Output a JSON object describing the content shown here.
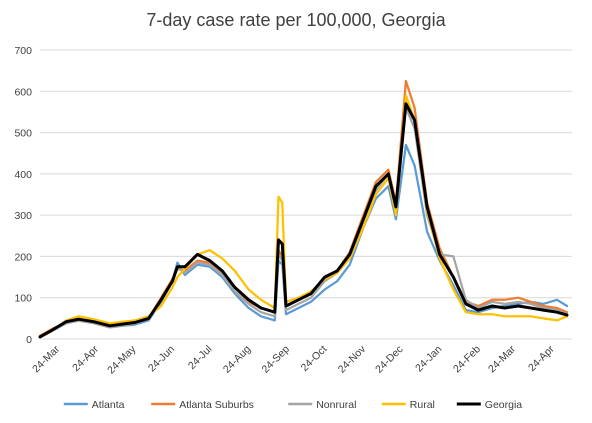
{
  "chart_data": {
    "type": "line",
    "title": "7-day case rate per 100,000, Georgia",
    "xlabel": "",
    "ylabel": "",
    "ylim": [
      0,
      700
    ],
    "yticks": [
      0,
      100,
      200,
      300,
      400,
      500,
      600,
      700
    ],
    "xlim": [
      "2020-03-10",
      "2021-05-10"
    ],
    "x_tick_labels": [
      {
        "date": "2020-03-24",
        "label": "24-Mar"
      },
      {
        "date": "2020-04-24",
        "label": "24-Apr"
      },
      {
        "date": "2020-05-24",
        "label": "24-May"
      },
      {
        "date": "2020-06-24",
        "label": "24-Jun"
      },
      {
        "date": "2020-07-24",
        "label": "24-Jul"
      },
      {
        "date": "2020-08-24",
        "label": "24-Aug"
      },
      {
        "date": "2020-09-24",
        "label": "24-Sep"
      },
      {
        "date": "2020-10-24",
        "label": "24-Oct"
      },
      {
        "date": "2020-11-24",
        "label": "24-Nov"
      },
      {
        "date": "2020-12-24",
        "label": "24-Dec"
      },
      {
        "date": "2021-01-24",
        "label": "24-Jan"
      },
      {
        "date": "2021-02-24",
        "label": "24-Feb"
      },
      {
        "date": "2021-03-24",
        "label": "24-Mar"
      },
      {
        "date": "2021-04-24",
        "label": "24-Apr"
      }
    ],
    "grid": true,
    "legend_position": "bottom",
    "series": [
      {
        "name": "Atlanta",
        "color": "#5b9bd5",
        "points": [
          [
            "2020-03-10",
            5
          ],
          [
            "2020-03-20",
            20
          ],
          [
            "2020-03-31",
            38
          ],
          [
            "2020-04-10",
            45
          ],
          [
            "2020-04-22",
            40
          ],
          [
            "2020-05-05",
            28
          ],
          [
            "2020-05-15",
            32
          ],
          [
            "2020-05-25",
            35
          ],
          [
            "2020-06-05",
            45
          ],
          [
            "2020-06-15",
            90
          ],
          [
            "2020-06-24",
            140
          ],
          [
            "2020-06-28",
            185
          ],
          [
            "2020-07-04",
            155
          ],
          [
            "2020-07-14",
            180
          ],
          [
            "2020-07-24",
            175
          ],
          [
            "2020-08-03",
            150
          ],
          [
            "2020-08-13",
            110
          ],
          [
            "2020-08-24",
            75
          ],
          [
            "2020-09-03",
            55
          ],
          [
            "2020-09-14",
            45
          ],
          [
            "2020-09-17",
            190
          ],
          [
            "2020-09-20",
            180
          ],
          [
            "2020-09-23",
            60
          ],
          [
            "2020-10-03",
            75
          ],
          [
            "2020-10-13",
            90
          ],
          [
            "2020-10-24",
            120
          ],
          [
            "2020-11-03",
            140
          ],
          [
            "2020-11-13",
            180
          ],
          [
            "2020-11-24",
            270
          ],
          [
            "2020-12-04",
            340
          ],
          [
            "2020-12-14",
            370
          ],
          [
            "2020-12-20",
            290
          ],
          [
            "2020-12-28",
            470
          ],
          [
            "2021-01-04",
            420
          ],
          [
            "2021-01-14",
            260
          ],
          [
            "2021-01-24",
            190
          ],
          [
            "2021-02-04",
            130
          ],
          [
            "2021-02-14",
            70
          ],
          [
            "2021-02-24",
            65
          ],
          [
            "2021-03-07",
            75
          ],
          [
            "2021-03-17",
            80
          ],
          [
            "2021-03-28",
            85
          ],
          [
            "2021-04-07",
            90
          ],
          [
            "2021-04-17",
            85
          ],
          [
            "2021-04-28",
            95
          ],
          [
            "2021-05-06",
            80
          ]
        ]
      },
      {
        "name": "Atlanta Suburbs",
        "color": "#ed7d31",
        "points": [
          [
            "2020-03-10",
            8
          ],
          [
            "2020-03-20",
            25
          ],
          [
            "2020-03-31",
            40
          ],
          [
            "2020-04-10",
            48
          ],
          [
            "2020-04-22",
            42
          ],
          [
            "2020-05-05",
            32
          ],
          [
            "2020-05-15",
            35
          ],
          [
            "2020-05-25",
            40
          ],
          [
            "2020-06-05",
            50
          ],
          [
            "2020-06-15",
            100
          ],
          [
            "2020-06-24",
            145
          ],
          [
            "2020-06-28",
            170
          ],
          [
            "2020-07-04",
            165
          ],
          [
            "2020-07-14",
            190
          ],
          [
            "2020-07-24",
            185
          ],
          [
            "2020-08-03",
            160
          ],
          [
            "2020-08-13",
            125
          ],
          [
            "2020-08-24",
            90
          ],
          [
            "2020-09-03",
            75
          ],
          [
            "2020-09-14",
            65
          ],
          [
            "2020-09-17",
            215
          ],
          [
            "2020-09-20",
            200
          ],
          [
            "2020-09-23",
            80
          ],
          [
            "2020-10-03",
            95
          ],
          [
            "2020-10-13",
            110
          ],
          [
            "2020-10-24",
            150
          ],
          [
            "2020-11-03",
            165
          ],
          [
            "2020-11-13",
            210
          ],
          [
            "2020-11-24",
            300
          ],
          [
            "2020-12-04",
            380
          ],
          [
            "2020-12-14",
            410
          ],
          [
            "2020-12-20",
            330
          ],
          [
            "2020-12-28",
            625
          ],
          [
            "2021-01-04",
            560
          ],
          [
            "2021-01-14",
            330
          ],
          [
            "2021-01-24",
            220
          ],
          [
            "2021-02-04",
            150
          ],
          [
            "2021-02-14",
            90
          ],
          [
            "2021-02-24",
            80
          ],
          [
            "2021-03-07",
            95
          ],
          [
            "2021-03-17",
            95
          ],
          [
            "2021-03-28",
            100
          ],
          [
            "2021-04-07",
            90
          ],
          [
            "2021-04-17",
            80
          ],
          [
            "2021-04-28",
            75
          ],
          [
            "2021-05-06",
            65
          ]
        ]
      },
      {
        "name": "Nonrural",
        "color": "#a5a5a5",
        "points": [
          [
            "2020-03-10",
            6
          ],
          [
            "2020-03-20",
            22
          ],
          [
            "2020-03-31",
            38
          ],
          [
            "2020-04-10",
            44
          ],
          [
            "2020-04-22",
            38
          ],
          [
            "2020-05-05",
            28
          ],
          [
            "2020-05-15",
            32
          ],
          [
            "2020-05-25",
            38
          ],
          [
            "2020-06-05",
            48
          ],
          [
            "2020-06-15",
            95
          ],
          [
            "2020-06-24",
            140
          ],
          [
            "2020-06-28",
            175
          ],
          [
            "2020-07-04",
            160
          ],
          [
            "2020-07-14",
            185
          ],
          [
            "2020-07-24",
            180
          ],
          [
            "2020-08-03",
            155
          ],
          [
            "2020-08-13",
            115
          ],
          [
            "2020-08-24",
            85
          ],
          [
            "2020-09-03",
            65
          ],
          [
            "2020-09-14",
            55
          ],
          [
            "2020-09-17",
            205
          ],
          [
            "2020-09-20",
            190
          ],
          [
            "2020-09-23",
            70
          ],
          [
            "2020-10-03",
            85
          ],
          [
            "2020-10-13",
            100
          ],
          [
            "2020-10-24",
            140
          ],
          [
            "2020-11-03",
            160
          ],
          [
            "2020-11-13",
            200
          ],
          [
            "2020-11-24",
            290
          ],
          [
            "2020-12-04",
            360
          ],
          [
            "2020-12-14",
            400
          ],
          [
            "2020-12-20",
            310
          ],
          [
            "2020-12-28",
            560
          ],
          [
            "2021-01-04",
            510
          ],
          [
            "2021-01-14",
            300
          ],
          [
            "2021-01-24",
            205
          ],
          [
            "2021-02-04",
            200
          ],
          [
            "2021-02-14",
            95
          ],
          [
            "2021-02-24",
            75
          ],
          [
            "2021-03-07",
            90
          ],
          [
            "2021-03-17",
            85
          ],
          [
            "2021-03-28",
            90
          ],
          [
            "2021-04-07",
            85
          ],
          [
            "2021-04-17",
            75
          ],
          [
            "2021-04-28",
            70
          ],
          [
            "2021-05-06",
            60
          ]
        ]
      },
      {
        "name": "Rural",
        "color": "#ffc000",
        "points": [
          [
            "2020-03-10",
            4
          ],
          [
            "2020-03-20",
            20
          ],
          [
            "2020-03-31",
            45
          ],
          [
            "2020-04-10",
            55
          ],
          [
            "2020-04-22",
            48
          ],
          [
            "2020-05-05",
            38
          ],
          [
            "2020-05-15",
            42
          ],
          [
            "2020-05-25",
            45
          ],
          [
            "2020-06-05",
            55
          ],
          [
            "2020-06-15",
            80
          ],
          [
            "2020-06-24",
            125
          ],
          [
            "2020-06-28",
            150
          ],
          [
            "2020-07-04",
            170
          ],
          [
            "2020-07-14",
            205
          ],
          [
            "2020-07-24",
            215
          ],
          [
            "2020-08-03",
            195
          ],
          [
            "2020-08-13",
            165
          ],
          [
            "2020-08-24",
            120
          ],
          [
            "2020-09-03",
            95
          ],
          [
            "2020-09-14",
            75
          ],
          [
            "2020-09-17",
            345
          ],
          [
            "2020-09-20",
            330
          ],
          [
            "2020-09-23",
            90
          ],
          [
            "2020-10-03",
            100
          ],
          [
            "2020-10-13",
            115
          ],
          [
            "2020-10-24",
            145
          ],
          [
            "2020-11-03",
            160
          ],
          [
            "2020-11-13",
            195
          ],
          [
            "2020-11-24",
            270
          ],
          [
            "2020-12-04",
            350
          ],
          [
            "2020-12-14",
            390
          ],
          [
            "2020-12-20",
            300
          ],
          [
            "2020-12-28",
            590
          ],
          [
            "2021-01-04",
            530
          ],
          [
            "2021-01-14",
            310
          ],
          [
            "2021-01-24",
            195
          ],
          [
            "2021-02-04",
            120
          ],
          [
            "2021-02-14",
            65
          ],
          [
            "2021-02-24",
            60
          ],
          [
            "2021-03-07",
            60
          ],
          [
            "2021-03-17",
            55
          ],
          [
            "2021-03-28",
            55
          ],
          [
            "2021-04-07",
            55
          ],
          [
            "2021-04-17",
            50
          ],
          [
            "2021-04-28",
            45
          ],
          [
            "2021-05-06",
            55
          ]
        ]
      },
      {
        "name": "Georgia",
        "color": "#000000",
        "points": [
          [
            "2020-03-10",
            5
          ],
          [
            "2020-03-20",
            22
          ],
          [
            "2020-03-31",
            42
          ],
          [
            "2020-04-10",
            48
          ],
          [
            "2020-04-22",
            42
          ],
          [
            "2020-05-05",
            32
          ],
          [
            "2020-05-15",
            36
          ],
          [
            "2020-05-25",
            40
          ],
          [
            "2020-06-05",
            50
          ],
          [
            "2020-06-15",
            95
          ],
          [
            "2020-06-24",
            140
          ],
          [
            "2020-06-28",
            175
          ],
          [
            "2020-07-04",
            175
          ],
          [
            "2020-07-14",
            205
          ],
          [
            "2020-07-24",
            190
          ],
          [
            "2020-08-03",
            165
          ],
          [
            "2020-08-13",
            125
          ],
          [
            "2020-08-24",
            95
          ],
          [
            "2020-09-03",
            75
          ],
          [
            "2020-09-14",
            65
          ],
          [
            "2020-09-17",
            240
          ],
          [
            "2020-09-20",
            230
          ],
          [
            "2020-09-23",
            80
          ],
          [
            "2020-10-03",
            95
          ],
          [
            "2020-10-13",
            110
          ],
          [
            "2020-10-24",
            150
          ],
          [
            "2020-11-03",
            165
          ],
          [
            "2020-11-13",
            205
          ],
          [
            "2020-11-24",
            290
          ],
          [
            "2020-12-04",
            370
          ],
          [
            "2020-12-14",
            400
          ],
          [
            "2020-12-20",
            320
          ],
          [
            "2020-12-28",
            570
          ],
          [
            "2021-01-04",
            530
          ],
          [
            "2021-01-14",
            320
          ],
          [
            "2021-01-24",
            205
          ],
          [
            "2021-02-04",
            150
          ],
          [
            "2021-02-14",
            85
          ],
          [
            "2021-02-24",
            70
          ],
          [
            "2021-03-07",
            80
          ],
          [
            "2021-03-17",
            75
          ],
          [
            "2021-03-28",
            80
          ],
          [
            "2021-04-07",
            75
          ],
          [
            "2021-04-17",
            70
          ],
          [
            "2021-04-28",
            65
          ],
          [
            "2021-05-06",
            58
          ]
        ]
      }
    ]
  }
}
